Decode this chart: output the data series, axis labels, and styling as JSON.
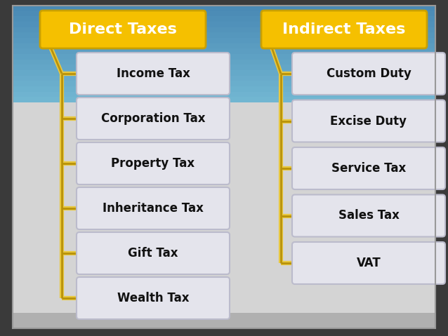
{
  "outer_bg": "#3a3a3a",
  "inner_bg_top": "#5599cc",
  "inner_bg_mid": "#aaccdd",
  "inner_bg_bottom": "#d8d8d8",
  "left_header": "Direct Taxes",
  "right_header": "Indirect Taxes",
  "header_bg": "#f5c000",
  "header_text_color": "#ffffff",
  "left_items": [
    "Income Tax",
    "Corporation Tax",
    "Property Tax",
    "Inheritance Tax",
    "Gift Tax",
    "Wealth Tax"
  ],
  "right_items": [
    "Custom Duty",
    "Excise Duty",
    "Service Tax",
    "Sales Tax",
    "VAT"
  ],
  "box_bg": "#e4e4ec",
  "box_border": "#bbbbcc",
  "box_text_color": "#111111",
  "line_color_dark": "#b8920a",
  "line_color_light": "#e8c840",
  "figsize": [
    6.38,
    4.79
  ],
  "dpi": 100
}
